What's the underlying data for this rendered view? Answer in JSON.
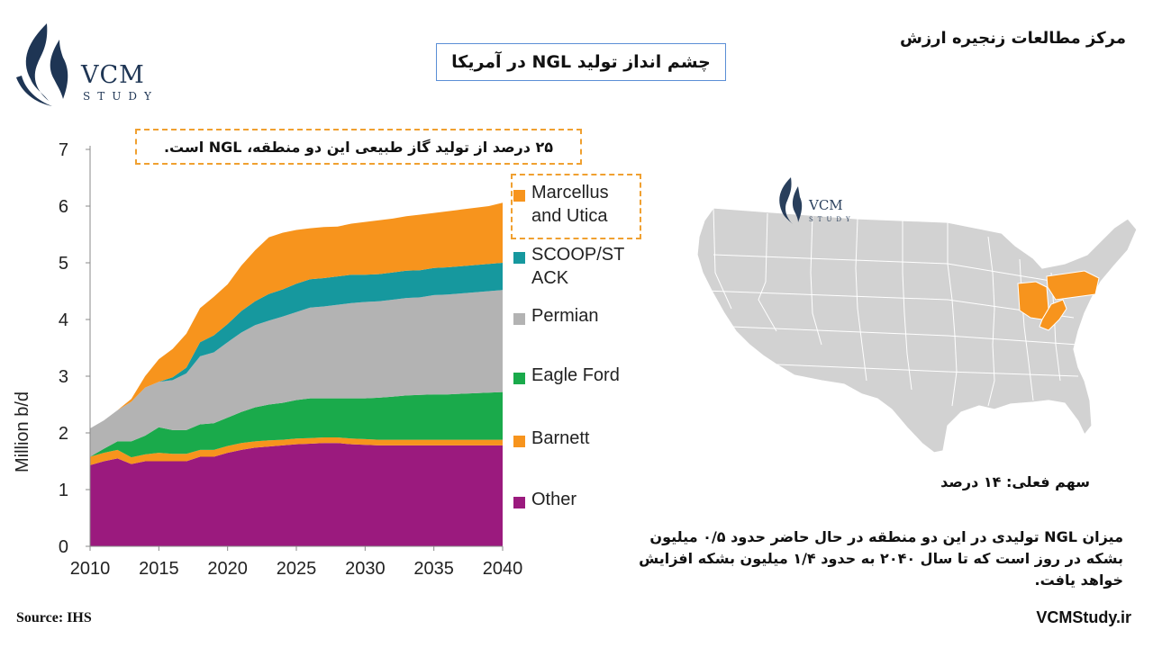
{
  "logo": {
    "text": "VCM",
    "sub": "STUDY"
  },
  "brand": "مرکز مطالعات زنجیره ارزش",
  "title": "چشم انداز تولید NGL در آمریکا",
  "callout_top": "۲۵ درصد از تولید گاز طبیعی این دو منطقه، NGL است.",
  "map_caption": "سهم فعلی: ۱۴ درصد",
  "paragraph": "میزان NGL تولیدی در این دو منطقه در حال حاضر حدود ۰/۵ میلیون بشکه در روز است که تا سال ۲۰۴۰ به حدود ۱/۴ میلیون بشکه افزایش خواهد یافت.",
  "source": "Source: IHS",
  "website": "VCMStudy.ir",
  "colors": {
    "other": "#9b1a7e",
    "barnett": "#f7941d",
    "eagle_ford": "#1aaa4b",
    "permian": "#b3b3b3",
    "scoop": "#16989e",
    "marcellus": "#f7941d",
    "map_land": "#d2d2d2",
    "map_highlight": "#f7941d",
    "logo_navy": "#1e3554"
  },
  "chart_data": {
    "type": "area",
    "stacked": true,
    "title": "",
    "xlabel": "",
    "ylabel": "Million b/d",
    "xlim": [
      2010,
      2040
    ],
    "ylim": [
      0,
      7
    ],
    "xticks": [
      2010,
      2015,
      2020,
      2025,
      2030,
      2035,
      2040
    ],
    "yticks": [
      0,
      1,
      2,
      3,
      4,
      5,
      6,
      7
    ],
    "grid": false,
    "legend_position": "right",
    "x": [
      2010,
      2011,
      2012,
      2013,
      2014,
      2015,
      2016,
      2017,
      2018,
      2019,
      2020,
      2021,
      2022,
      2023,
      2024,
      2025,
      2026,
      2027,
      2028,
      2029,
      2030,
      2031,
      2032,
      2033,
      2034,
      2035,
      2036,
      2037,
      2038,
      2039,
      2040
    ],
    "series": [
      {
        "name": "Other",
        "color": "#9b1a7e",
        "values": [
          1.43,
          1.5,
          1.55,
          1.45,
          1.5,
          1.5,
          1.5,
          1.5,
          1.58,
          1.58,
          1.65,
          1.7,
          1.74,
          1.76,
          1.78,
          1.8,
          1.81,
          1.82,
          1.82,
          1.8,
          1.79,
          1.78,
          1.78,
          1.78,
          1.78,
          1.78,
          1.78,
          1.78,
          1.78,
          1.78,
          1.78
        ]
      },
      {
        "name": "Barnett",
        "color": "#f7941d",
        "values": [
          0.15,
          0.15,
          0.15,
          0.12,
          0.12,
          0.15,
          0.13,
          0.13,
          0.12,
          0.12,
          0.12,
          0.12,
          0.11,
          0.11,
          0.1,
          0.1,
          0.1,
          0.1,
          0.1,
          0.1,
          0.1,
          0.1,
          0.1,
          0.1,
          0.1,
          0.1,
          0.1,
          0.1,
          0.1,
          0.1,
          0.1
        ]
      },
      {
        "name": "Eagle Ford",
        "color": "#1aaa4b",
        "values": [
          0.0,
          0.07,
          0.15,
          0.28,
          0.33,
          0.45,
          0.42,
          0.42,
          0.45,
          0.47,
          0.5,
          0.55,
          0.6,
          0.63,
          0.65,
          0.68,
          0.7,
          0.69,
          0.69,
          0.71,
          0.72,
          0.74,
          0.76,
          0.78,
          0.79,
          0.8,
          0.8,
          0.81,
          0.82,
          0.83,
          0.84
        ]
      },
      {
        "name": "Permian",
        "color": "#b3b3b3",
        "values": [
          0.5,
          0.5,
          0.55,
          0.7,
          0.85,
          0.8,
          0.88,
          1.0,
          1.2,
          1.25,
          1.33,
          1.4,
          1.45,
          1.48,
          1.52,
          1.55,
          1.6,
          1.62,
          1.65,
          1.68,
          1.7,
          1.7,
          1.71,
          1.72,
          1.72,
          1.75,
          1.76,
          1.77,
          1.78,
          1.79,
          1.8
        ]
      },
      {
        "name": "SCOOP/STACK",
        "color": "#16989e",
        "values": [
          0.0,
          0.0,
          0.0,
          0.0,
          0.0,
          0.0,
          0.05,
          0.1,
          0.25,
          0.3,
          0.32,
          0.38,
          0.42,
          0.47,
          0.48,
          0.5,
          0.5,
          0.5,
          0.5,
          0.5,
          0.48,
          0.48,
          0.48,
          0.48,
          0.48,
          0.48,
          0.48,
          0.48,
          0.48,
          0.48,
          0.48
        ]
      },
      {
        "name": "Marcellus and Utica",
        "color": "#f7941d",
        "values": [
          0.0,
          0.0,
          0.0,
          0.05,
          0.2,
          0.4,
          0.5,
          0.6,
          0.6,
          0.68,
          0.7,
          0.8,
          0.9,
          1.0,
          1.0,
          0.95,
          0.9,
          0.9,
          0.88,
          0.9,
          0.93,
          0.95,
          0.95,
          0.96,
          0.98,
          0.97,
          0.99,
          1.0,
          1.01,
          1.02,
          1.06
        ]
      }
    ],
    "legend": [
      "Marcellus and Utica",
      "SCOOP/STACK",
      "Permian",
      "Eagle Ford",
      "Barnett",
      "Other"
    ],
    "legend_display": [
      "Marcellus\nand Utica",
      "SCOOP/ST\nACK",
      "Permian",
      "Eagle Ford",
      "Barnett",
      "Other"
    ]
  }
}
